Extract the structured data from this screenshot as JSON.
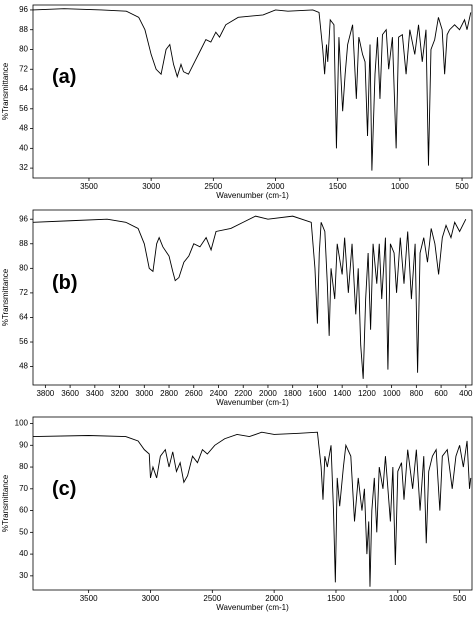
{
  "chart_data": [
    {
      "type": "line",
      "label": "(a)",
      "xlabel": "Wavenumber (cm-1)",
      "ylabel": "%Transmittance",
      "xlim": [
        3950,
        420
      ],
      "ylim": [
        28,
        98
      ],
      "xticks": [
        3500,
        3000,
        2500,
        2000,
        1500,
        1000,
        500
      ],
      "yticks": [
        32,
        40,
        48,
        56,
        64,
        72,
        80,
        88,
        96
      ],
      "color": "#000000",
      "x": [
        3950,
        3700,
        3400,
        3200,
        3100,
        3050,
        3000,
        2960,
        2920,
        2880,
        2850,
        2820,
        2790,
        2760,
        2740,
        2700,
        2650,
        2600,
        2560,
        2520,
        2480,
        2450,
        2400,
        2300,
        2100,
        2000,
        1900,
        1700,
        1650,
        1620,
        1605,
        1590,
        1580,
        1560,
        1530,
        1510,
        1490,
        1460,
        1440,
        1420,
        1380,
        1350,
        1330,
        1300,
        1280,
        1260,
        1240,
        1225,
        1200,
        1180,
        1160,
        1140,
        1110,
        1090,
        1060,
        1030,
        1010,
        980,
        950,
        920,
        880,
        850,
        820,
        790,
        770,
        750,
        720,
        690,
        660,
        640,
        620,
        600,
        560,
        520,
        480,
        460,
        430
      ],
      "values": [
        96,
        96.5,
        96,
        95.5,
        93,
        88,
        78,
        72,
        70,
        80,
        82,
        74,
        69,
        74,
        71,
        70,
        75,
        80,
        84,
        83,
        87,
        85,
        90,
        93,
        94,
        96,
        95.5,
        96,
        95,
        80,
        70,
        82,
        75,
        92,
        90,
        40,
        85,
        55,
        70,
        82,
        90,
        60,
        85,
        78,
        75,
        45,
        82,
        31,
        70,
        85,
        60,
        86,
        88,
        72,
        85,
        40,
        85,
        86,
        70,
        88,
        78,
        90,
        75,
        88,
        33,
        80,
        84,
        93,
        88,
        70,
        86,
        88,
        90,
        88,
        92,
        88,
        95
      ]
    },
    {
      "type": "line",
      "label": "(b)",
      "xlabel": "Wavenumber (cm-1)",
      "ylabel": "%Transmittance",
      "xlim": [
        3900,
        350
      ],
      "ylim": [
        42,
        99
      ],
      "xticks": [
        3800,
        3600,
        3400,
        3200,
        3000,
        2800,
        2600,
        2400,
        2200,
        2000,
        1800,
        1600,
        1400,
        1200,
        1000,
        800,
        600,
        400
      ],
      "yticks": [
        48,
        56,
        64,
        72,
        80,
        88,
        96
      ],
      "color": "#000000",
      "x": [
        3900,
        3600,
        3300,
        3150,
        3050,
        3000,
        2960,
        2930,
        2900,
        2880,
        2850,
        2800,
        2770,
        2750,
        2720,
        2680,
        2640,
        2600,
        2550,
        2500,
        2460,
        2420,
        2300,
        2200,
        2100,
        2000,
        1800,
        1650,
        1620,
        1600,
        1585,
        1570,
        1540,
        1520,
        1505,
        1490,
        1460,
        1440,
        1400,
        1380,
        1350,
        1320,
        1290,
        1270,
        1250,
        1230,
        1210,
        1190,
        1170,
        1150,
        1120,
        1100,
        1080,
        1050,
        1030,
        1010,
        980,
        960,
        930,
        900,
        870,
        840,
        810,
        790,
        770,
        740,
        710,
        680,
        650,
        620,
        590,
        560,
        520,
        490,
        450,
        400
      ],
      "values": [
        95,
        95.5,
        96,
        95,
        93,
        88,
        80,
        79,
        88,
        90,
        87,
        84,
        79,
        76,
        77,
        82,
        84,
        88,
        87,
        90,
        86,
        92,
        93,
        95,
        97,
        96,
        97,
        95,
        80,
        62,
        85,
        95,
        92,
        75,
        58,
        80,
        70,
        88,
        78,
        90,
        72,
        88,
        65,
        80,
        55,
        44,
        70,
        85,
        60,
        88,
        75,
        88,
        70,
        90,
        47,
        88,
        85,
        72,
        90,
        75,
        92,
        70,
        88,
        46,
        85,
        90,
        82,
        93,
        88,
        78,
        90,
        94,
        90,
        95,
        92,
        96
      ]
    },
    {
      "type": "line",
      "label": "(c)",
      "xlabel": "Wavenumber (cm-1)",
      "ylabel": "%Transmittance",
      "xlim": [
        3950,
        400
      ],
      "ylim": [
        23.5,
        103
      ],
      "xticks": [
        3500,
        3000,
        2500,
        2000,
        1500,
        1000,
        500
      ],
      "yticks": [
        30,
        40,
        50,
        60,
        70,
        80,
        90,
        100
      ],
      "color": "#000000",
      "x": [
        3950,
        3500,
        3200,
        3100,
        3050,
        3010,
        3000,
        2980,
        2950,
        2920,
        2880,
        2850,
        2820,
        2790,
        2760,
        2730,
        2700,
        2660,
        2620,
        2580,
        2540,
        2480,
        2400,
        2300,
        2200,
        2100,
        2000,
        1800,
        1650,
        1620,
        1605,
        1590,
        1570,
        1540,
        1520,
        1505,
        1490,
        1470,
        1440,
        1420,
        1380,
        1350,
        1320,
        1290,
        1270,
        1250,
        1235,
        1225,
        1210,
        1190,
        1170,
        1150,
        1120,
        1100,
        1060,
        1040,
        1020,
        1000,
        970,
        950,
        920,
        880,
        850,
        820,
        790,
        770,
        750,
        720,
        690,
        660,
        640,
        600,
        560,
        530,
        500,
        470,
        440,
        420,
        410
      ],
      "values": [
        94,
        94.5,
        94,
        92,
        88,
        86,
        75,
        80,
        75,
        85,
        88,
        80,
        87,
        78,
        82,
        73,
        76,
        85,
        82,
        88,
        86,
        90,
        93,
        95,
        94,
        96,
        95,
        95.5,
        96,
        80,
        65,
        85,
        80,
        90,
        60,
        27,
        75,
        62,
        80,
        90,
        85,
        55,
        75,
        60,
        70,
        40,
        55,
        25,
        60,
        75,
        50,
        80,
        70,
        85,
        55,
        80,
        35,
        78,
        82,
        65,
        88,
        70,
        88,
        60,
        85,
        45,
        78,
        85,
        88,
        60,
        85,
        88,
        70,
        85,
        90,
        80,
        92,
        70,
        75
      ]
    }
  ]
}
